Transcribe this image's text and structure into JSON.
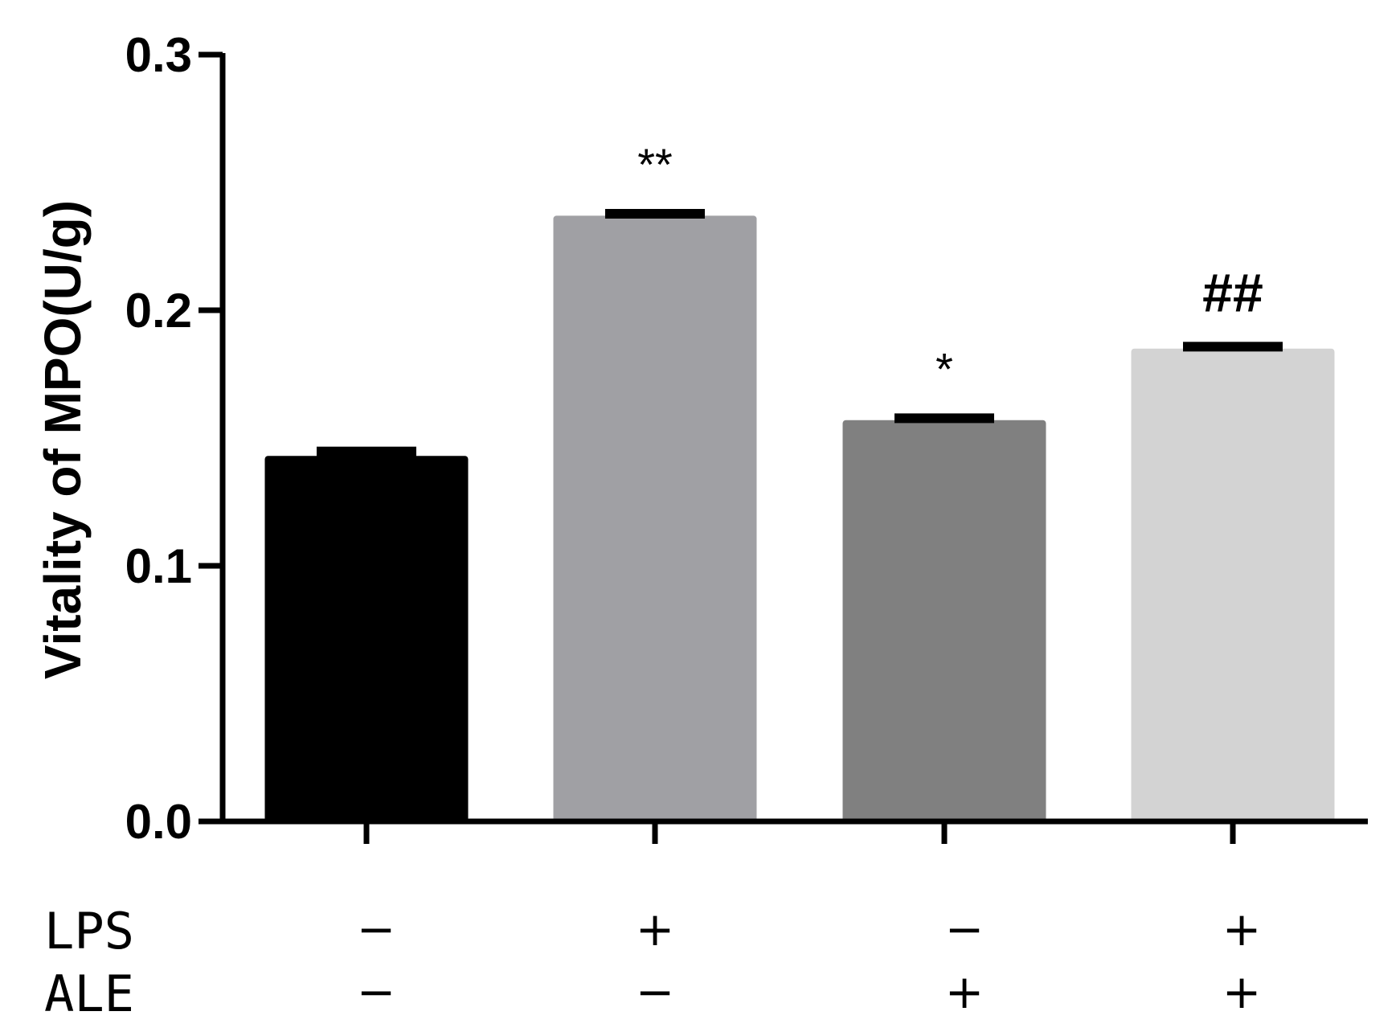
{
  "chart_data": {
    "type": "bar",
    "title": "",
    "xlabel": "",
    "ylabel": "Vitality of MPO(U/g)",
    "ylim": [
      0,
      0.3
    ],
    "yticks": [
      "0.0",
      "0.1",
      "0.2",
      "0.3"
    ],
    "grid": false,
    "categories": [
      "LPS − / ALE −",
      "LPS + / ALE −",
      "LPS − / ALE +",
      "LPS + / ALE +"
    ],
    "values": [
      0.143,
      0.237,
      0.157,
      0.185
    ],
    "errors": [
      0.003,
      0.002,
      0.002,
      0.002
    ],
    "colors": [
      "#000000",
      "#a0a0a4",
      "#808080",
      "#d3d3d3"
    ],
    "annotations": [
      "",
      "**",
      "*",
      "##"
    ],
    "conditions": [
      {
        "name": "LPS",
        "signs": [
          "−",
          "+",
          "−",
          "+"
        ]
      },
      {
        "name": "ALE",
        "signs": [
          "−",
          "−",
          "+",
          "+"
        ]
      }
    ]
  }
}
